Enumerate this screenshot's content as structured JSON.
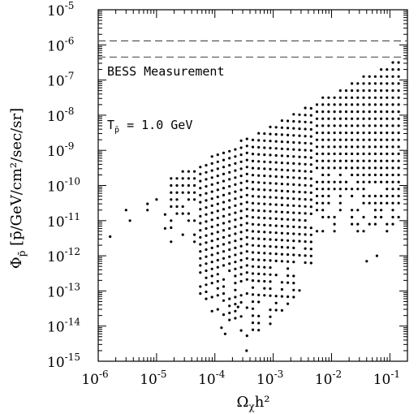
{
  "chart_data": {
    "type": "scatter",
    "x_scale": "log",
    "y_scale": "log",
    "xlim": [
      1e-06,
      0.2
    ],
    "ylim": [
      1e-15,
      1e-05
    ],
    "x_ticks": [
      {
        "base": "10",
        "exp": "-6"
      },
      {
        "base": "10",
        "exp": "-5"
      },
      {
        "base": "10",
        "exp": "-4"
      },
      {
        "base": "10",
        "exp": "-3"
      },
      {
        "base": "10",
        "exp": "-2"
      },
      {
        "base": "10",
        "exp": "-1"
      }
    ],
    "y_ticks": [
      {
        "base": "10",
        "exp": "-15"
      },
      {
        "base": "10",
        "exp": "-14"
      },
      {
        "base": "10",
        "exp": "-13"
      },
      {
        "base": "10",
        "exp": "-12"
      },
      {
        "base": "10",
        "exp": "-11"
      },
      {
        "base": "10",
        "exp": "-10"
      },
      {
        "base": "10",
        "exp": "-9"
      },
      {
        "base": "10",
        "exp": "-8"
      },
      {
        "base": "10",
        "exp": "-7"
      },
      {
        "base": "10",
        "exp": "-6"
      },
      {
        "base": "10",
        "exp": "-5"
      }
    ],
    "xlabel": {
      "main": "Ω",
      "sub": "χ",
      "rest": "h²"
    },
    "ylabel": {
      "main": "Φ",
      "sub": "p̄",
      "rest": " [p̄/GeV/cm²/sec/sr]"
    },
    "annotations": {
      "bess": "BESS Measurement",
      "energy_main": "T",
      "energy_sub": "p̄",
      "energy_rest": " = 1.0 GeV"
    },
    "reference_lines": [
      1.3e-06,
      4.5e-07
    ],
    "scatter_envelope": {
      "upper_left_log": [
        -4.9,
        -9.9
      ],
      "upper_right_log": [
        -0.85,
        -6.35
      ],
      "lower_floor_log": -11.3,
      "x_max_log": -0.85
    },
    "points_sample": [
      [
        1.6e-06,
        3.5e-12
      ],
      [
        3e-06,
        2e-11
      ],
      [
        3.5e-06,
        1e-11
      ],
      [
        7e-06,
        3e-11
      ],
      [
        7e-06,
        2e-11
      ],
      [
        1e-05,
        4e-11
      ],
      [
        1.4e-05,
        6e-12
      ],
      [
        1.4e-05,
        1.5e-11
      ],
      [
        0.00013,
        9e-15
      ],
      [
        0.00015,
        6e-15
      ],
      [
        0.00025,
        3.5e-14
      ],
      [
        0.00035,
        2e-15
      ],
      [
        0.04,
        7e-13
      ],
      [
        0.06,
        1e-12
      ]
    ]
  }
}
